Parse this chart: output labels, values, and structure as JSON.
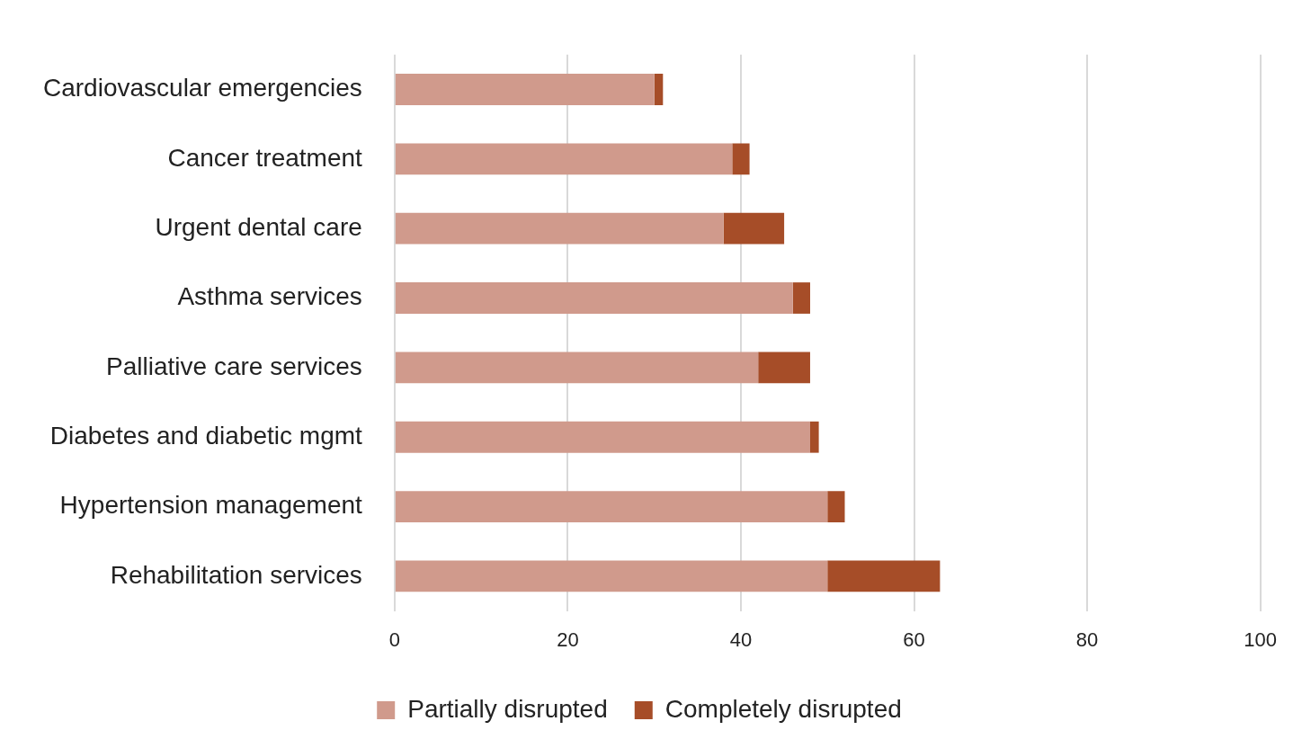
{
  "chart_data": {
    "type": "bar",
    "orientation": "horizontal",
    "stacked": true,
    "categories": [
      "Cardiovascular emergencies",
      "Cancer treatment",
      "Urgent dental care",
      "Asthma services",
      "Palliative care services",
      "Diabetes and diabetic mgmt",
      "Hypertension management",
      "Rehabilitation services"
    ],
    "series": [
      {
        "name": "Partially disrupted",
        "color": "#d09a8c",
        "values": [
          30,
          39,
          38,
          46,
          42,
          48,
          50,
          50
        ]
      },
      {
        "name": "Completely disrupted",
        "color": "#a64d28",
        "values": [
          1,
          2,
          7,
          2,
          6,
          1,
          2,
          13
        ]
      }
    ],
    "xlim": [
      0,
      100
    ],
    "xticks": [
      0,
      20,
      40,
      60,
      80,
      100
    ],
    "grid": "x",
    "legend": "bottom"
  }
}
